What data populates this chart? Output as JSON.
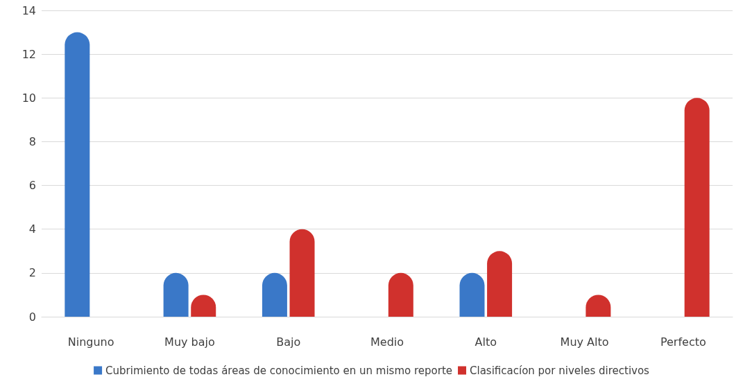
{
  "chart_data": {
    "type": "bar",
    "categories": [
      "Ninguno",
      "Muy bajo",
      "Bajo",
      "Medio",
      "Alto",
      "Muy Alto",
      "Perfecto"
    ],
    "series": [
      {
        "name": "Cubrimiento de todas áreas de conocimiento en un mismo reporte",
        "color": "#3a78c8",
        "values": [
          13,
          2,
          2,
          0,
          2,
          0,
          0
        ]
      },
      {
        "name": "Clasificacíon por niveles directivos",
        "color": "#d0312d",
        "values": [
          0,
          1,
          4,
          2,
          3,
          1,
          10
        ]
      }
    ],
    "ylim": [
      0,
      14
    ],
    "yticks": [
      0,
      2,
      4,
      6,
      8,
      10,
      12,
      14
    ],
    "grid": "y",
    "legend": "bottom"
  }
}
